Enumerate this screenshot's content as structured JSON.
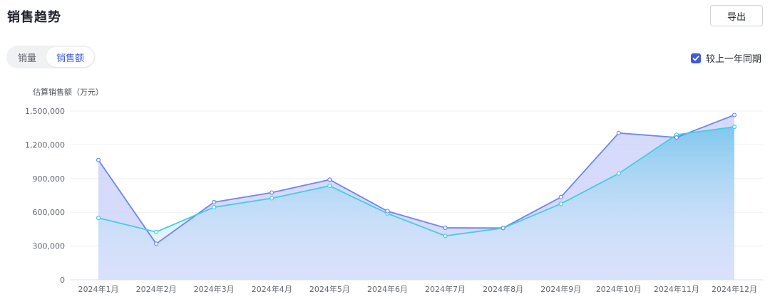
{
  "header": {
    "title": "销售趋势",
    "export_label": "导出"
  },
  "toggle": {
    "items": [
      "销量",
      "销售额"
    ],
    "active": "销售额"
  },
  "compare": {
    "label": "较上一年同期",
    "checked": true
  },
  "colors": {
    "accent": "#3b5bdb",
    "current_line": "#6f86f2",
    "previous_line": "#45cde0"
  },
  "chart_data": {
    "type": "area",
    "ylabel": "估算销售额（万元）",
    "categories": [
      "2024年1月",
      "2024年2月",
      "2024年3月",
      "2024年4月",
      "2024年5月",
      "2024年6月",
      "2024年7月",
      "2024年8月",
      "2024年9月",
      "2024年10月",
      "2024年11月",
      "2024年12月"
    ],
    "ylim": [
      0,
      1500000
    ],
    "yticks": [
      0,
      300000,
      600000,
      900000,
      1200000,
      1500000
    ],
    "ytick_labels": [
      "0",
      "300,000",
      "600,000",
      "900,000",
      "1,200,000",
      "1,500,000"
    ],
    "grid": true,
    "series": [
      {
        "values": [
          1065000,
          320000,
          690000,
          775000,
          890000,
          610000,
          462000,
          460000,
          735000,
          1305000,
          1265000,
          1465000
        ]
      },
      {
        "values": [
          550000,
          425000,
          645000,
          725000,
          835000,
          590000,
          390000,
          460000,
          675000,
          945000,
          1290000,
          1360000
        ]
      }
    ]
  }
}
